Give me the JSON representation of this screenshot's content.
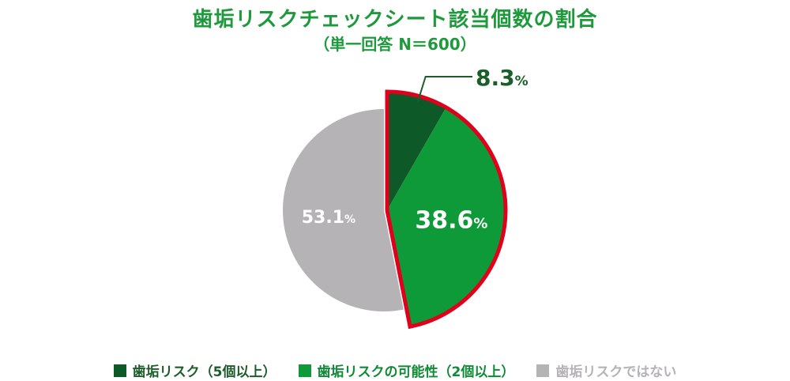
{
  "title": "歯垢リスクチェックシート該当個数の割合",
  "subtitle": "（単一回答 N＝600）",
  "colors": {
    "title": "#1e9a3c",
    "highlight_border": "#e0001b"
  },
  "chart_data": {
    "type": "pie",
    "title": "歯垢リスクチェックシート該当個数の割合",
    "subtitle": "（単一回答 N＝600）",
    "unit": "%",
    "start": "12 o'clock",
    "direction": "clockwise",
    "legend_position": "bottom",
    "slices": [
      {
        "label": "歯垢リスク（5個以上）",
        "value": 8.3,
        "display": "8.3",
        "color": "#0d5a28",
        "label_color": "#1b5e2a",
        "label_position": "outside",
        "highlighted": true
      },
      {
        "label": "歯垢リスクの可能性（2個以上）",
        "value": 38.6,
        "display": "38.6",
        "color": "#0f9a3a",
        "label_color": "#ffffff",
        "label_position": "inside",
        "highlighted": true
      },
      {
        "label": "歯垢リスクではない",
        "value": 53.1,
        "display": "53.1",
        "color": "#b5b3b6",
        "label_color": "#ffffff",
        "label_position": "inside",
        "highlighted": false
      }
    ]
  }
}
